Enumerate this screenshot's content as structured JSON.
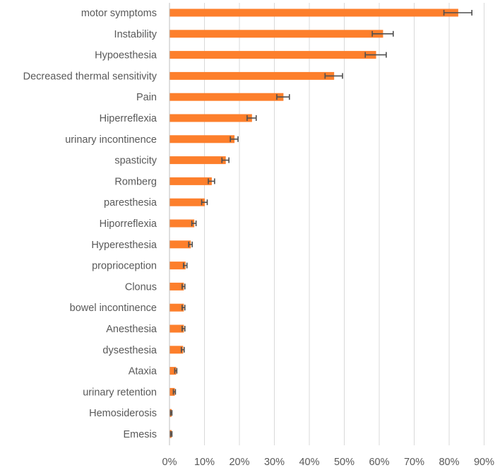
{
  "chart_data": {
    "type": "bar",
    "orientation": "horizontal",
    "title": "",
    "xlabel": "",
    "ylabel": "",
    "xlim": [
      0,
      90
    ],
    "grid": true,
    "legend": "none",
    "bar_color": "#fd7f2c",
    "error_bar_color": "#4f4f4f",
    "categories": [
      "motor symptoms",
      "Instability",
      "Hypoesthesia",
      "Decreased thermal sensitivity",
      "Pain",
      "Hiperreflexia",
      "urinary incontinence",
      "spasticity",
      "Romberg",
      "paresthesia",
      "Hiporreflexia",
      "Hyperesthesia",
      "proprioception",
      "Clonus",
      "bowel incontinence",
      "Anesthesia",
      "dysesthesia",
      "Ataxia",
      "urinary retention",
      "Hemosiderosis",
      "Emesis"
    ],
    "values": [
      82.5,
      61.0,
      59.0,
      47.0,
      32.5,
      23.5,
      18.5,
      16.0,
      12.0,
      10.0,
      7.0,
      6.0,
      4.5,
      4.0,
      4.0,
      4.0,
      3.8,
      1.8,
      1.4,
      0.5,
      0.5
    ],
    "errors": [
      4.0,
      3.0,
      3.0,
      2.5,
      1.8,
      1.3,
      1.1,
      1.0,
      0.9,
      0.8,
      0.6,
      0.5,
      0.5,
      0.4,
      0.4,
      0.4,
      0.4,
      0.3,
      0.3,
      0.2,
      0.2
    ],
    "x_ticks": [
      "0%",
      "10%",
      "20%",
      "30%",
      "40%",
      "50%",
      "60%",
      "70%",
      "80%",
      "90%"
    ]
  }
}
